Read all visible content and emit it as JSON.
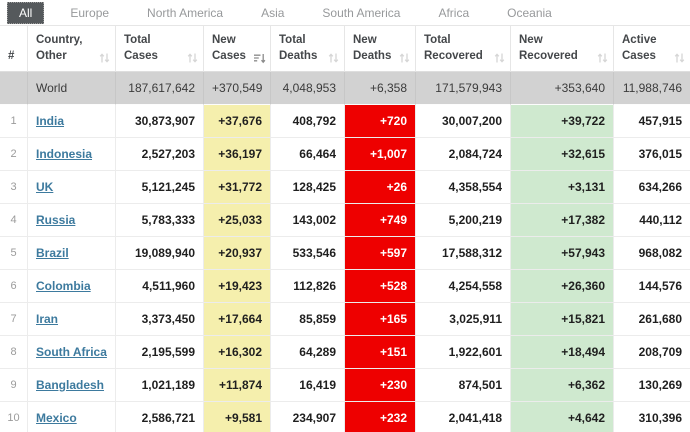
{
  "tabs": [
    {
      "label": "All",
      "active": true
    },
    {
      "label": "Europe",
      "active": false
    },
    {
      "label": "North America",
      "active": false
    },
    {
      "label": "Asia",
      "active": false
    },
    {
      "label": "South America",
      "active": false
    },
    {
      "label": "Africa",
      "active": false
    },
    {
      "label": "Oceania",
      "active": false
    }
  ],
  "table": {
    "columns": [
      {
        "key": "idx",
        "label": "#",
        "sort": "none"
      },
      {
        "key": "country",
        "label": "Country, Other",
        "sort": "both"
      },
      {
        "key": "total_cases",
        "label": "Total Cases",
        "sort": "both"
      },
      {
        "key": "new_cases",
        "label": "New Cases",
        "sort": "desc"
      },
      {
        "key": "total_deaths",
        "label": "Total Deaths",
        "sort": "both"
      },
      {
        "key": "new_deaths",
        "label": "New Deaths",
        "sort": "both"
      },
      {
        "key": "total_recovered",
        "label": "Total Recovered",
        "sort": "both"
      },
      {
        "key": "new_recovered",
        "label": "New Recovered",
        "sort": "both"
      },
      {
        "key": "active_cases",
        "label": "Active Cases",
        "sort": "both"
      }
    ],
    "world_row": {
      "idx": "",
      "country": "World",
      "total_cases": "187,617,642",
      "new_cases": "+370,549",
      "total_deaths": "4,048,953",
      "new_deaths": "+6,358",
      "total_recovered": "171,579,943",
      "new_recovered": "+353,640",
      "active_cases": "11,988,746"
    },
    "rows": [
      {
        "idx": "1",
        "country": "India",
        "total_cases": "30,873,907",
        "new_cases": "+37,676",
        "total_deaths": "408,792",
        "new_deaths": "+720",
        "total_recovered": "30,007,200",
        "new_recovered": "+39,722",
        "active_cases": "457,915"
      },
      {
        "idx": "2",
        "country": "Indonesia",
        "total_cases": "2,527,203",
        "new_cases": "+36,197",
        "total_deaths": "66,464",
        "new_deaths": "+1,007",
        "total_recovered": "2,084,724",
        "new_recovered": "+32,615",
        "active_cases": "376,015"
      },
      {
        "idx": "3",
        "country": "UK",
        "total_cases": "5,121,245",
        "new_cases": "+31,772",
        "total_deaths": "128,425",
        "new_deaths": "+26",
        "total_recovered": "4,358,554",
        "new_recovered": "+3,131",
        "active_cases": "634,266"
      },
      {
        "idx": "4",
        "country": "Russia",
        "total_cases": "5,783,333",
        "new_cases": "+25,033",
        "total_deaths": "143,002",
        "new_deaths": "+749",
        "total_recovered": "5,200,219",
        "new_recovered": "+17,382",
        "active_cases": "440,112"
      },
      {
        "idx": "5",
        "country": "Brazil",
        "total_cases": "19,089,940",
        "new_cases": "+20,937",
        "total_deaths": "533,546",
        "new_deaths": "+597",
        "total_recovered": "17,588,312",
        "new_recovered": "+57,943",
        "active_cases": "968,082"
      },
      {
        "idx": "6",
        "country": "Colombia",
        "total_cases": "4,511,960",
        "new_cases": "+19,423",
        "total_deaths": "112,826",
        "new_deaths": "+528",
        "total_recovered": "4,254,558",
        "new_recovered": "+26,360",
        "active_cases": "144,576"
      },
      {
        "idx": "7",
        "country": "Iran",
        "total_cases": "3,373,450",
        "new_cases": "+17,664",
        "total_deaths": "85,859",
        "new_deaths": "+165",
        "total_recovered": "3,025,911",
        "new_recovered": "+15,821",
        "active_cases": "261,680"
      },
      {
        "idx": "8",
        "country": "South Africa",
        "total_cases": "2,195,599",
        "new_cases": "+16,302",
        "total_deaths": "64,289",
        "new_deaths": "+151",
        "total_recovered": "1,922,601",
        "new_recovered": "+18,494",
        "active_cases": "208,709"
      },
      {
        "idx": "9",
        "country": "Bangladesh",
        "total_cases": "1,021,189",
        "new_cases": "+11,874",
        "total_deaths": "16,419",
        "new_deaths": "+230",
        "total_recovered": "874,501",
        "new_recovered": "+6,362",
        "active_cases": "130,269"
      },
      {
        "idx": "10",
        "country": "Mexico",
        "total_cases": "2,586,721",
        "new_cases": "+9,581",
        "total_deaths": "234,907",
        "new_deaths": "+232",
        "total_recovered": "2,041,418",
        "new_recovered": "+4,642",
        "active_cases": "310,396"
      }
    ]
  },
  "colors": {
    "active_tab_bg": "#55595c",
    "new_cases_bg": "#f5efad",
    "new_deaths_bg": "#ee0000",
    "new_recovered_bg": "#cfe9cf",
    "world_row_bg": "#d2d2d2",
    "link": "#3d7a9e"
  }
}
